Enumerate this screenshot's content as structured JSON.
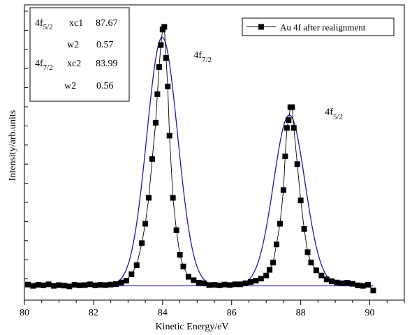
{
  "chart_data": {
    "type": "scatter",
    "xlabel": "Kinetic Energy/eV",
    "ylabel": "Intensity/arb.units",
    "xlim": [
      80,
      91
    ],
    "x_ticks": [
      80,
      82,
      84,
      86,
      88,
      90
    ],
    "y_range": [
      0,
      1
    ],
    "y_tick_labels_shown": false,
    "grid": false,
    "legend": {
      "position": "top-right",
      "entries": [
        {
          "label": "Au 4f after realignment",
          "marker": "square",
          "color": "#000000"
        }
      ]
    },
    "colors": {
      "data": "#000000",
      "fit": "#1a1aa6",
      "baseline": "#1a1aa6"
    },
    "peak_labels": [
      {
        "main": "4f",
        "sub": "7/2",
        "x": 84.9,
        "y": 0.88
      },
      {
        "main": "4f",
        "sub": "5/2",
        "x": 88.7,
        "y": 0.66
      }
    ],
    "fit_table": {
      "rows": [
        {
          "label_main": "4f",
          "label_sub": "5/2",
          "param": "xc1",
          "value": "87.67"
        },
        {
          "label_main": "",
          "label_sub": "",
          "param": "w2",
          "value": "0.57"
        },
        {
          "label_main": "4f",
          "label_sub": "7/2",
          "param": "xc2",
          "value": "83.99"
        },
        {
          "label_main": "",
          "label_sub": "",
          "param": "w2",
          "value": "0.56"
        }
      ]
    },
    "series": [
      {
        "name": "Au 4f after realignment",
        "x": [
          80.1,
          80.25,
          80.4,
          80.55,
          80.7,
          80.85,
          81.0,
          81.15,
          81.3,
          81.45,
          81.6,
          81.75,
          81.9,
          82.05,
          82.2,
          82.35,
          82.5,
          82.65,
          82.8,
          82.95,
          83.1,
          83.25,
          83.4,
          83.5,
          83.6,
          83.7,
          83.8,
          83.85,
          83.9,
          83.95,
          84.0,
          84.05,
          84.1,
          84.15,
          84.2,
          84.3,
          84.4,
          84.5,
          84.6,
          84.75,
          84.9,
          85.05,
          85.2,
          85.35,
          85.5,
          85.65,
          85.8,
          85.95,
          86.1,
          86.25,
          86.4,
          86.55,
          86.7,
          86.85,
          87.0,
          87.1,
          87.2,
          87.3,
          87.4,
          87.5,
          87.55,
          87.6,
          87.65,
          87.7,
          87.75,
          87.8,
          87.9,
          88.0,
          88.1,
          88.2,
          88.3,
          88.45,
          88.6,
          88.75,
          88.9,
          89.05,
          89.2,
          89.35,
          89.5,
          89.65,
          89.8,
          89.95,
          90.1
        ],
        "y": [
          0.005,
          0.0,
          0.004,
          0.002,
          0.006,
          0.0,
          0.003,
          0.001,
          -0.002,
          0.004,
          0.002,
          0.003,
          0.006,
          0.002,
          0.004,
          0.003,
          0.005,
          0.007,
          0.013,
          0.02,
          0.045,
          0.08,
          0.165,
          0.24,
          0.34,
          0.49,
          0.63,
          0.74,
          0.845,
          0.93,
          0.99,
          1.0,
          0.88,
          0.77,
          0.58,
          0.34,
          0.215,
          0.12,
          0.075,
          0.035,
          0.022,
          0.012,
          0.01,
          0.003,
          0.004,
          0.002,
          0.005,
          0.003,
          0.006,
          0.006,
          0.01,
          0.015,
          0.02,
          0.028,
          0.04,
          0.062,
          0.09,
          0.16,
          0.24,
          0.37,
          0.5,
          0.61,
          0.64,
          0.69,
          0.69,
          0.61,
          0.47,
          0.33,
          0.22,
          0.13,
          0.09,
          0.06,
          0.04,
          0.025,
          0.018,
          0.013,
          0.01,
          0.012,
          0.008,
          0.002,
          0.0,
          0.004,
          -0.018
        ]
      }
    ],
    "fit_curve": {
      "baseline": 0.0,
      "peaks": [
        {
          "center": 83.99,
          "fwhm": 1.05,
          "height": 0.96
        },
        {
          "center": 87.67,
          "fwhm": 1.07,
          "height": 0.66
        }
      ]
    }
  }
}
